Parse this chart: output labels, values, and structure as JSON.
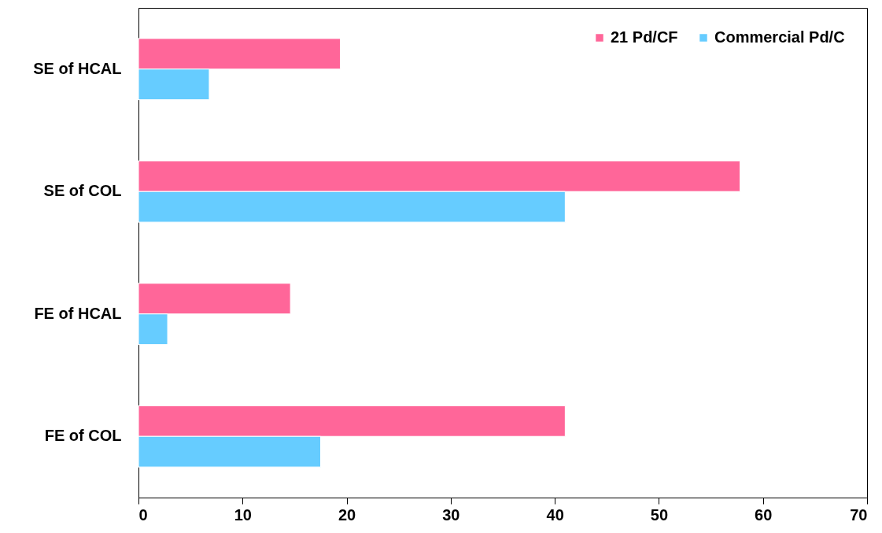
{
  "chart_data": {
    "type": "bar",
    "orientation": "horizontal",
    "categories": [
      "SE of HCAL",
      "SE of COL",
      "FE of HCAL",
      "FE of COL"
    ],
    "series": [
      {
        "name": "21 Pd/CF",
        "color": "#ff6699",
        "values": [
          19.4,
          57.8,
          14.6,
          41.0
        ]
      },
      {
        "name": "Commercial Pd/C",
        "color": "#66ccff",
        "values": [
          6.8,
          41.0,
          2.8,
          17.5
        ]
      }
    ],
    "xlim": [
      0,
      70
    ],
    "xticks": [
      0,
      10,
      20,
      30,
      40,
      50,
      60,
      70
    ],
    "legend": "top right"
  }
}
